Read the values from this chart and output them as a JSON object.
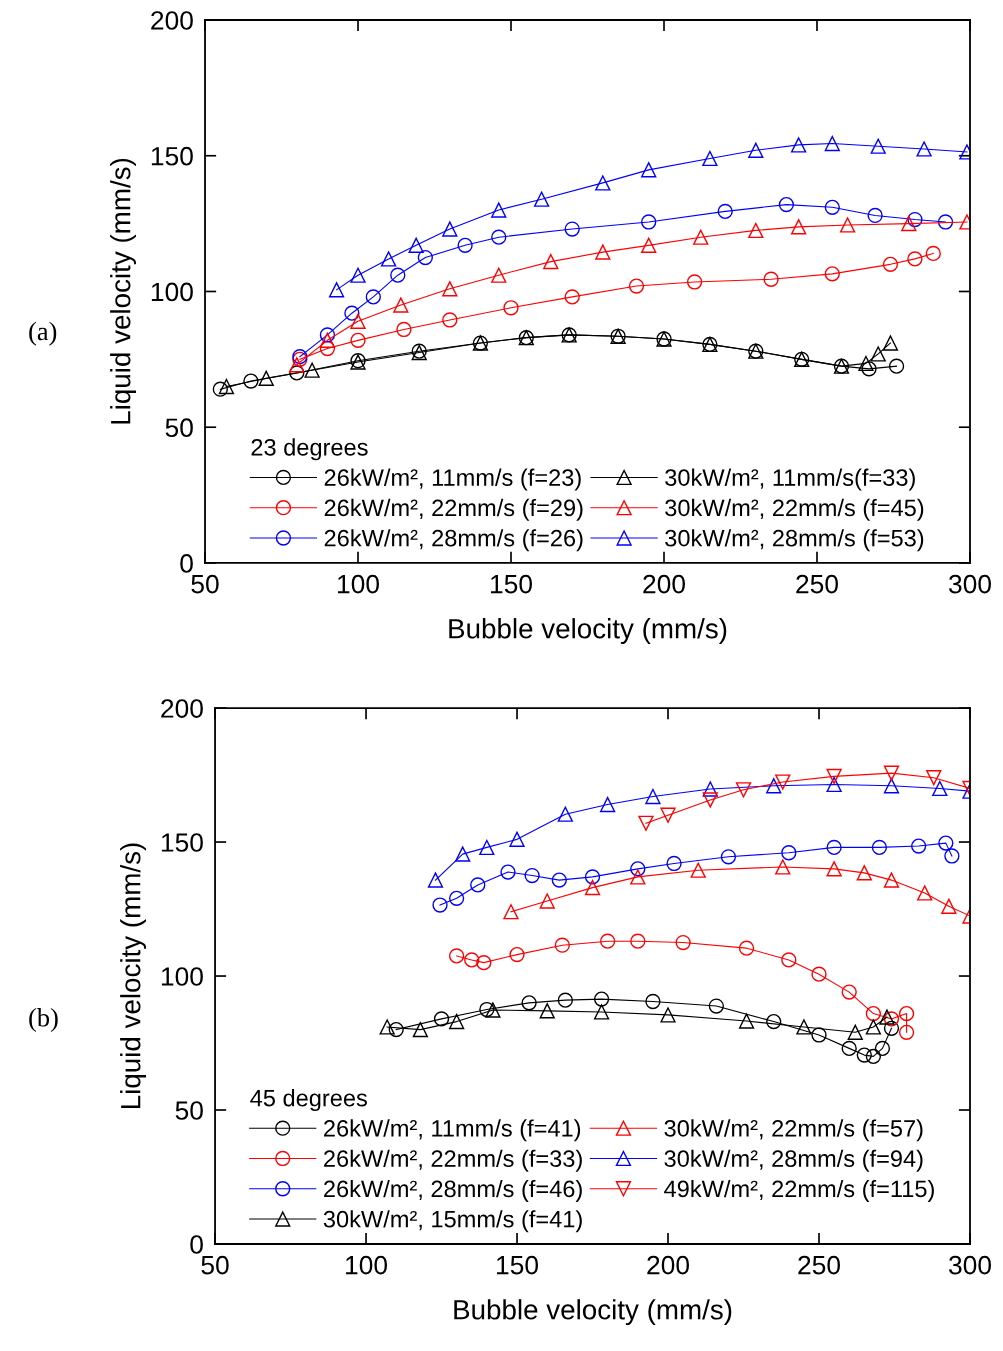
{
  "chart_data": [
    {
      "type": "line",
      "xlabel": "Bubble velocity (mm/s)",
      "ylabel": "Liquid velocity (mm/s)",
      "legend_title": "23 degrees",
      "annotations": [
        "(a)"
      ],
      "xlim": [
        50,
        300
      ],
      "ylim": [
        0,
        200
      ],
      "xticks": [
        50,
        100,
        150,
        200,
        250,
        300
      ],
      "yticks": [
        0,
        50,
        100,
        150,
        200
      ],
      "grid": false,
      "legend": "bottom",
      "line_style": "solid",
      "series": [
        {
          "name": "26kW/m², 11mm/s (f=23)",
          "color": "#000000",
          "marker": "circle",
          "x": [
            55,
            65,
            80,
            100,
            120,
            140,
            155,
            169,
            185,
            200,
            215,
            230,
            245,
            258,
            267,
            276
          ],
          "values": [
            64,
            67,
            70,
            74.5,
            78,
            81,
            83,
            84,
            83.5,
            82.5,
            80.5,
            78,
            75,
            72.5,
            71.5,
            72.5
          ]
        },
        {
          "name": "26kW/m², 22mm/s (f=29)",
          "color": "#ff0000",
          "marker": "circle",
          "x": [
            81,
            90,
            100,
            115,
            130,
            150,
            170,
            191,
            210,
            235,
            255,
            274,
            282,
            288
          ],
          "values": [
            75,
            79,
            82,
            86,
            89.5,
            94,
            98,
            102,
            103.5,
            104.5,
            106.5,
            110,
            112,
            114
          ]
        },
        {
          "name": "26kW/m², 28mm/s (f=26)",
          "color": "#0000ff",
          "marker": "circle",
          "x": [
            81,
            90,
            98,
            105,
            113,
            122,
            135,
            146,
            170,
            195,
            220,
            240,
            255,
            269,
            282,
            292
          ],
          "values": [
            76,
            84,
            92,
            98,
            106,
            112.5,
            117,
            120,
            123,
            125.6,
            129.5,
            132,
            131,
            128,
            126.5,
            125.6
          ]
        },
        {
          "name": "30kW/m², 11mm/s(f=33)",
          "color": "#000000",
          "marker": "triangle",
          "x": [
            57,
            70,
            85,
            100,
            120,
            140,
            155,
            169,
            185,
            200,
            215,
            230,
            245,
            258,
            266,
            270,
            274
          ],
          "values": [
            65,
            68,
            71,
            74,
            77.5,
            81,
            83,
            84,
            83.5,
            82.5,
            80.5,
            78,
            75,
            72.5,
            73.5,
            77,
            81
          ]
        },
        {
          "name": "30kW/m², 22mm/s (f=45)",
          "color": "#ff0000",
          "marker": "triangle",
          "x": [
            80,
            90,
            100,
            114,
            130,
            146,
            163,
            180,
            195,
            212,
            230,
            244,
            260,
            280,
            299
          ],
          "values": [
            73,
            82,
            89,
            95,
            101,
            106,
            111,
            114.5,
            117,
            120,
            122.5,
            123.8,
            124.5,
            125,
            125.6
          ]
        },
        {
          "name": "30kW/m², 28mm/s (f=53)",
          "color": "#0000ff",
          "marker": "triangle",
          "x": [
            93,
            100,
            110,
            119,
            130,
            146,
            160,
            180,
            195,
            215,
            230,
            244,
            255,
            270,
            285,
            299
          ],
          "values": [
            100.6,
            106,
            112,
            117,
            123,
            130,
            134,
            140,
            144.8,
            149,
            152,
            154,
            154.5,
            153.5,
            152.5,
            151.4
          ]
        }
      ]
    },
    {
      "type": "line",
      "xlabel": "Bubble velocity (mm/s)",
      "ylabel": "Liquid velocity (mm/s)",
      "legend_title": "45 degrees",
      "annotations": [
        "(b)"
      ],
      "xlim": [
        50,
        300
      ],
      "ylim": [
        0,
        200
      ],
      "xticks": [
        50,
        100,
        150,
        200,
        250,
        300
      ],
      "yticks": [
        0,
        50,
        100,
        150,
        200
      ],
      "grid": false,
      "legend": "bottom",
      "line_style": "solid",
      "series": [
        {
          "name": "26kW/m², 11mm/s (f=41)",
          "color": "#000000",
          "marker": "circle",
          "x": [
            110,
            125,
            140,
            154,
            166,
            178,
            195,
            216,
            235,
            250,
            260,
            265,
            268,
            271,
            274
          ],
          "values": [
            80,
            84,
            87.5,
            90,
            91,
            91.4,
            90.5,
            88.8,
            83,
            78,
            73,
            70.5,
            70,
            73,
            80.5
          ]
        },
        {
          "name": "26kW/m², 22mm/s (f=33)",
          "color": "#ff0000",
          "marker": "circle",
          "x": [
            130,
            135,
            139,
            150,
            165,
            180,
            190,
            205,
            226,
            240,
            250,
            260,
            268,
            274,
            279,
            279
          ],
          "values": [
            107.5,
            106,
            105,
            108,
            111.5,
            113,
            113,
            112.5,
            110.4,
            106,
            100.7,
            94,
            86,
            84,
            86,
            79
          ]
        },
        {
          "name": "26kW/m², 28mm/s (f=46)",
          "color": "#0000ff",
          "marker": "circle",
          "x": [
            124.5,
            130,
            137,
            147,
            155,
            164,
            175,
            190,
            202,
            220,
            240,
            255,
            270,
            283,
            292,
            294
          ],
          "values": [
            126.5,
            129,
            134,
            138.8,
            137.5,
            135.8,
            137,
            140,
            142,
            144.5,
            146,
            148,
            148,
            148.5,
            149.6,
            144.8
          ]
        },
        {
          "name": "30kW/m², 15mm/s (f=41)",
          "color": "#000000",
          "marker": "triangle",
          "x": [
            107,
            118,
            130,
            142,
            160,
            178,
            200,
            226,
            245,
            262,
            268,
            272.5
          ],
          "values": [
            81,
            80,
            83,
            87.3,
            87,
            86.6,
            85.5,
            83.2,
            81,
            79,
            81,
            84.7
          ]
        },
        {
          "name": "30kW/m², 22mm/s (f=57)",
          "color": "#ff0000",
          "marker": "triangle",
          "x": [
            148,
            160,
            175,
            190,
            210,
            238,
            255,
            265,
            274,
            285,
            293,
            300
          ],
          "values": [
            124,
            128,
            133,
            137,
            139.5,
            140.7,
            140,
            138.5,
            135.8,
            131,
            126,
            122.4
          ]
        },
        {
          "name": "30kW/m², 28mm/s (f=94)",
          "color": "#0000ff",
          "marker": "triangle",
          "x": [
            123,
            132,
            140,
            150,
            166,
            180,
            195,
            214,
            235,
            255,
            274,
            290,
            300
          ],
          "values": [
            135.8,
            145.5,
            148,
            151,
            160.4,
            164,
            167,
            169.8,
            171,
            171.5,
            171,
            170,
            169
          ]
        },
        {
          "name": "49kW/m², 22mm/s (f=115)",
          "color": "#ff0000",
          "marker": "triangle_down",
          "x": [
            192.7,
            200,
            214,
            225,
            238,
            255,
            274,
            288,
            300
          ],
          "values": [
            157,
            160,
            165.7,
            169.5,
            172.4,
            174.5,
            175.7,
            174,
            170
          ]
        }
      ]
    }
  ]
}
